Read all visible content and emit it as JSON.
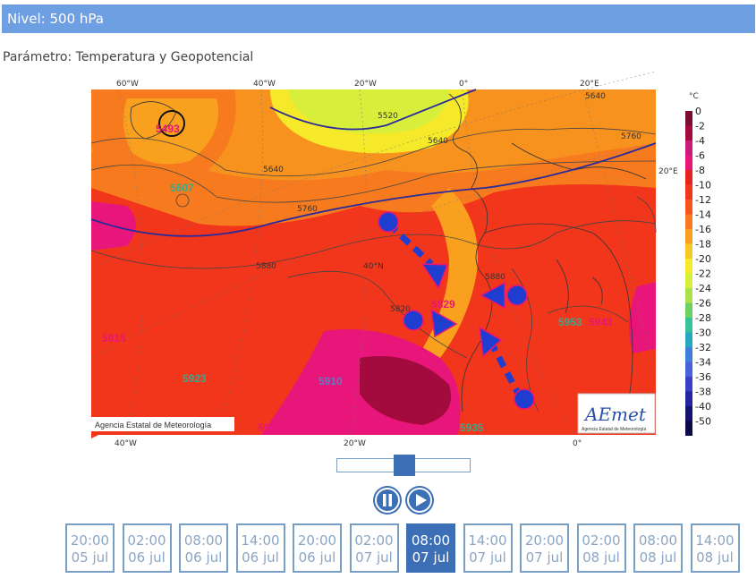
{
  "header": {
    "level_label": "Nivel: 500 hPa"
  },
  "parameter": {
    "label": "Parámetro: Temperatura y Geopotencial"
  },
  "map": {
    "top_lon_labels": [
      "60°W",
      "40°W",
      "20°W",
      "0°",
      "20°E"
    ],
    "bottom_lon_labels": [
      "40°W",
      "20°W",
      "0°"
    ],
    "right_lat_label": "20°E",
    "inner_lat_label": "40°N",
    "contour_labels": [
      "5520",
      "5640",
      "5640",
      "5760",
      "5640",
      "5760",
      "5880",
      "5820",
      "5880"
    ],
    "geopotential_values": [
      "5493",
      "5607",
      "5829",
      "5915",
      "5923",
      "5910",
      "5934",
      "5935",
      "5953",
      "5943"
    ],
    "copyright": "Agencia Estatal de Meteorología",
    "logo_text": "AEmet",
    "logo_subtext": "Agencia Estatal de Meteorología"
  },
  "scale": {
    "unit": "°C",
    "labels": [
      "0",
      "-2",
      "-4",
      "-6",
      "-8",
      "-10",
      "-12",
      "-14",
      "-16",
      "-18",
      "-20",
      "-22",
      "-24",
      "-26",
      "-28",
      "-30",
      "-32",
      "-34",
      "-36",
      "-38",
      "-40",
      "-50"
    ],
    "colors": [
      "#7a0c2e",
      "#a30a3e",
      "#cc1a7a",
      "#e8157a",
      "#e8231c",
      "#f2361c",
      "#f5541c",
      "#f77b1e",
      "#f9a11f",
      "#fac823",
      "#f5e92a",
      "#d7ef3b",
      "#a9e24a",
      "#6ed061",
      "#35c39c",
      "#25a6c3",
      "#3e7ed8",
      "#4960d8",
      "#3a3fc8",
      "#2723a0",
      "#141370",
      "#0a0a4a"
    ]
  },
  "player": {
    "pause_icon": "pause-icon",
    "play_icon": "play-icon",
    "slider_position": 0.43
  },
  "times": [
    {
      "time": "20:00",
      "date": "05 jul",
      "active": false
    },
    {
      "time": "02:00",
      "date": "06 jul",
      "active": false
    },
    {
      "time": "08:00",
      "date": "06 jul",
      "active": false
    },
    {
      "time": "14:00",
      "date": "06 jul",
      "active": false
    },
    {
      "time": "20:00",
      "date": "06 jul",
      "active": false
    },
    {
      "time": "02:00",
      "date": "07 jul",
      "active": false
    },
    {
      "time": "08:00",
      "date": "07 jul",
      "active": true
    },
    {
      "time": "14:00",
      "date": "07 jul",
      "active": false
    },
    {
      "time": "20:00",
      "date": "07 jul",
      "active": false
    },
    {
      "time": "02:00",
      "date": "08 jul",
      "active": false
    },
    {
      "time": "08:00",
      "date": "08 jul",
      "active": false
    },
    {
      "time": "14:00",
      "date": "08 jul",
      "active": false
    }
  ]
}
